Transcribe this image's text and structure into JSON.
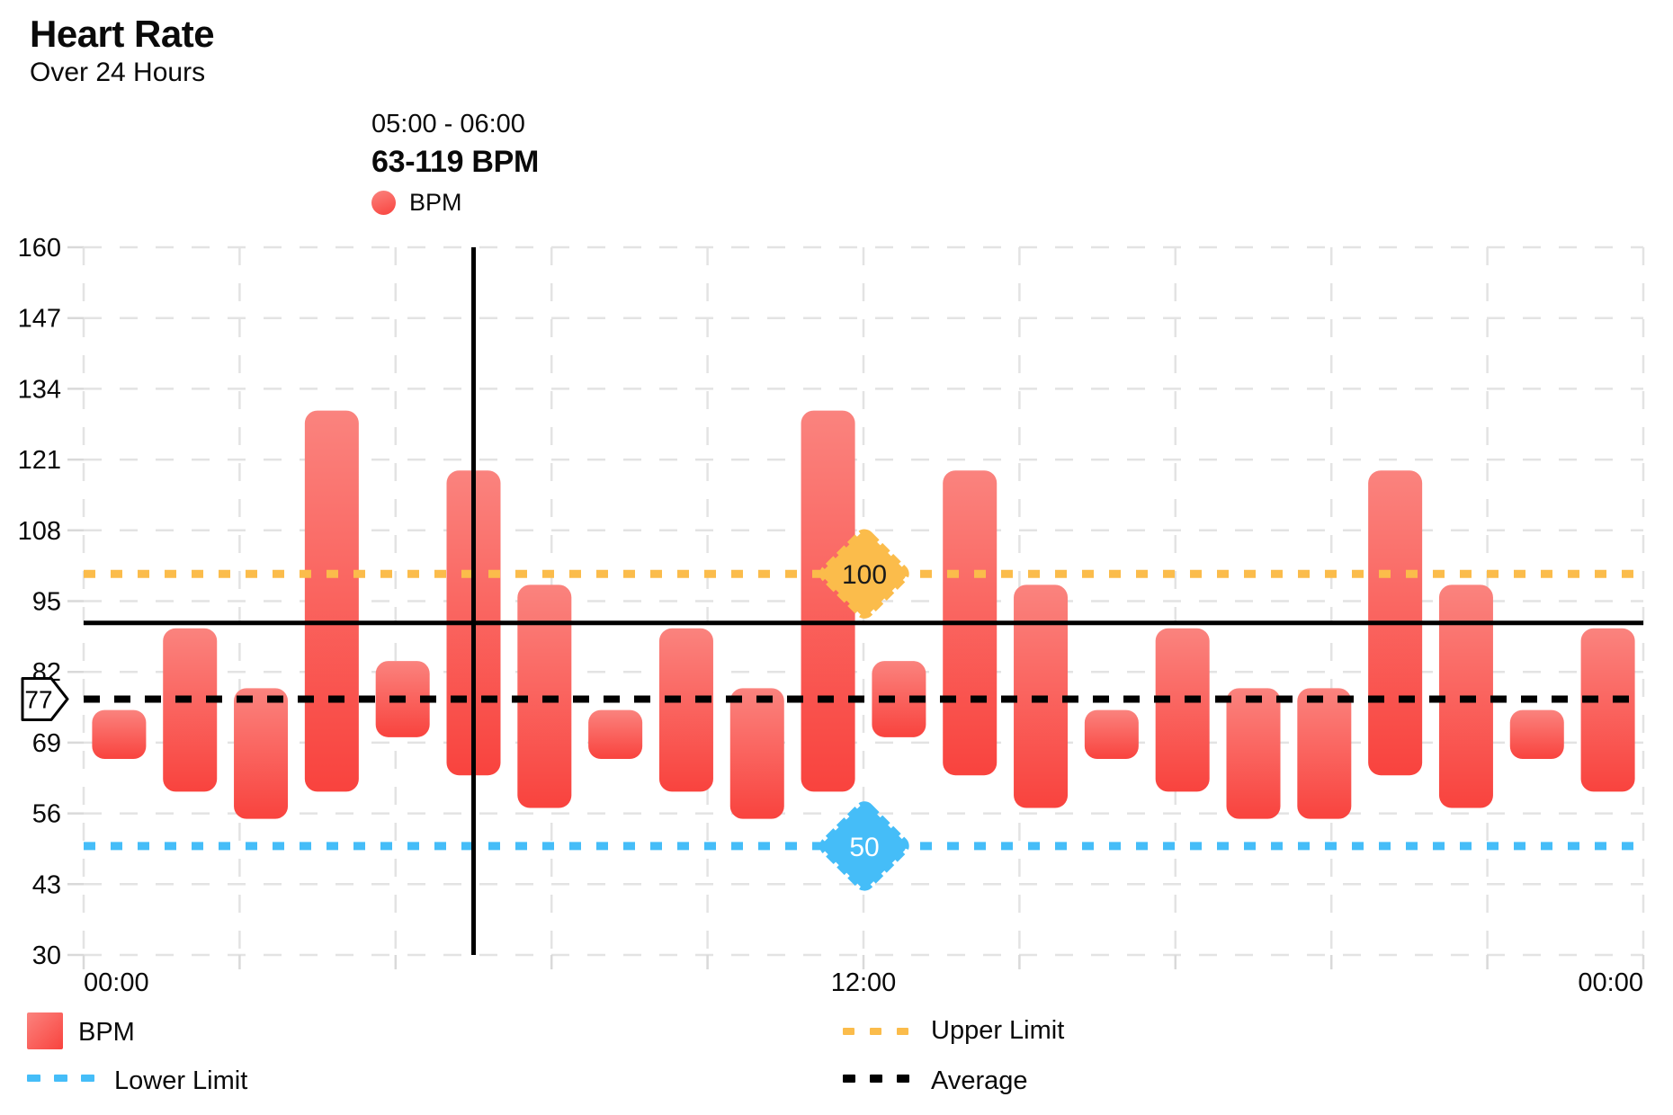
{
  "header": {
    "title": "Heart Rate",
    "subtitle": "Over 24 Hours"
  },
  "tooltip": {
    "time_range": "05:00 - 06:00",
    "value_range": "63-119 BPM",
    "series_label": "BPM"
  },
  "legend": {
    "bpm_label": "BPM",
    "lower_label": "Lower Limit",
    "upper_label": "Upper Limit",
    "average_label": "Average"
  },
  "colors": {
    "bar_top": "#FA837E",
    "bar_bottom": "#F9433E",
    "upper": "#FBBC4B",
    "lower": "#45BDF8",
    "average": "#000000",
    "crosshair": "#000000",
    "grid": "#E3E3E3",
    "tick": "#D9D9D9",
    "text": "#0A0A0A",
    "diamond_upper_text": "#1A1A1A",
    "diamond_lower_text": "#FFFFFF"
  },
  "chart_data": {
    "type": "bar",
    "subtype": "range-column",
    "title": "Heart Rate",
    "subtitle": "Over 24 Hours",
    "ylabel": "BPM",
    "ylim": [
      30,
      160
    ],
    "y_ticks": [
      160,
      147,
      134,
      121,
      108,
      95,
      82,
      69,
      56,
      43,
      30
    ],
    "x_labels": [
      "00:00",
      "12:00",
      "00:00"
    ],
    "grid": true,
    "bars": [
      {
        "min": 66,
        "max": 75
      },
      {
        "min": 60,
        "max": 90
      },
      {
        "min": 55,
        "max": 79
      },
      {
        "min": 60,
        "max": 130
      },
      {
        "min": 70,
        "max": 84
      },
      {
        "min": 63,
        "max": 119
      },
      {
        "min": 57,
        "max": 98
      },
      {
        "min": 66,
        "max": 75
      },
      {
        "min": 60,
        "max": 90
      },
      {
        "min": 55,
        "max": 79
      },
      {
        "min": 60,
        "max": 130
      },
      {
        "min": 70,
        "max": 84
      },
      {
        "min": 63,
        "max": 119
      },
      {
        "min": 57,
        "max": 98
      },
      {
        "min": 66,
        "max": 75
      },
      {
        "min": 60,
        "max": 90
      },
      {
        "min": 55,
        "max": 79
      },
      {
        "min": 55,
        "max": 79
      },
      {
        "min": 63,
        "max": 119
      },
      {
        "min": 57,
        "max": 98
      },
      {
        "min": 66,
        "max": 75
      },
      {
        "min": 60,
        "max": 90
      }
    ],
    "selected": {
      "index": 5,
      "time_range": "05:00 - 06:00",
      "min": 63,
      "max": 119,
      "mid": 91
    },
    "upper_limit": {
      "value": 100,
      "label": "100"
    },
    "lower_limit": {
      "value": 50,
      "label": "50"
    },
    "average": {
      "value": 77,
      "label": "77"
    },
    "legend_position": "bottom"
  }
}
